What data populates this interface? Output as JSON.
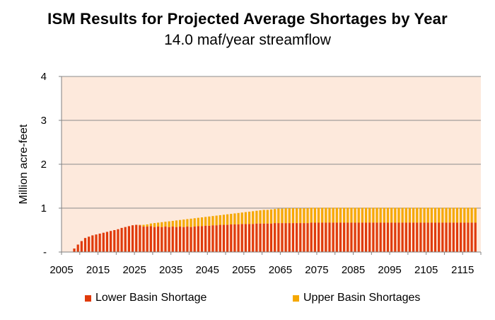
{
  "chart_data": {
    "type": "bar",
    "stacked": true,
    "title": "ISM Results for Projected Average Shortages by Year",
    "subtitle": "14.0 maf/year streamflow",
    "ylabel": "Million acre-feet",
    "xlabel": "",
    "ylim": [
      0,
      4
    ],
    "y_ticks": [
      "-",
      "1",
      "2",
      "3",
      "4"
    ],
    "x_ticks": [
      "2005",
      "2015",
      "2025",
      "2035",
      "2045",
      "2055",
      "2065",
      "2075",
      "2085",
      "2095",
      "2105",
      "2115"
    ],
    "x": [
      2008,
      2009,
      2010,
      2011,
      2012,
      2013,
      2014,
      2015,
      2016,
      2017,
      2018,
      2019,
      2020,
      2021,
      2022,
      2023,
      2024,
      2025,
      2026,
      2027,
      2028,
      2029,
      2030,
      2031,
      2032,
      2033,
      2034,
      2035,
      2036,
      2037,
      2038,
      2039,
      2040,
      2041,
      2042,
      2043,
      2044,
      2045,
      2046,
      2047,
      2048,
      2049,
      2050,
      2051,
      2052,
      2053,
      2054,
      2055,
      2056,
      2057,
      2058,
      2059,
      2060,
      2061,
      2062,
      2063,
      2064,
      2065,
      2066,
      2067,
      2068,
      2069,
      2070,
      2071,
      2072,
      2073,
      2074,
      2075,
      2076,
      2077,
      2078,
      2079,
      2080,
      2081,
      2082,
      2083,
      2084,
      2085,
      2086,
      2087,
      2088,
      2089,
      2090,
      2091,
      2092,
      2093,
      2094,
      2095,
      2096,
      2097,
      2098,
      2099,
      2100,
      2101,
      2102,
      2103,
      2104,
      2105,
      2106,
      2107,
      2108,
      2109,
      2110,
      2111,
      2112,
      2113,
      2114,
      2115,
      2116,
      2117,
      2118
    ],
    "series": [
      {
        "name": "Lower Basin Shortage",
        "color": "#e03a0a",
        "values": [
          0.08,
          0.17,
          0.25,
          0.32,
          0.35,
          0.38,
          0.4,
          0.42,
          0.44,
          0.46,
          0.48,
          0.5,
          0.52,
          0.55,
          0.57,
          0.59,
          0.61,
          0.62,
          0.61,
          0.58,
          0.58,
          0.59,
          0.57,
          0.58,
          0.57,
          0.58,
          0.57,
          0.58,
          0.57,
          0.58,
          0.57,
          0.58,
          0.57,
          0.58,
          0.59,
          0.59,
          0.6,
          0.6,
          0.61,
          0.61,
          0.62,
          0.62,
          0.62,
          0.63,
          0.63,
          0.63,
          0.64,
          0.64,
          0.64,
          0.64,
          0.65,
          0.65,
          0.65,
          0.65,
          0.65,
          0.66,
          0.66,
          0.66,
          0.66,
          0.66,
          0.66,
          0.66,
          0.66,
          0.66,
          0.66,
          0.67,
          0.67,
          0.67,
          0.67,
          0.67,
          0.67,
          0.67,
          0.67,
          0.67,
          0.67,
          0.67,
          0.67,
          0.67,
          0.67,
          0.67,
          0.67,
          0.67,
          0.67,
          0.67,
          0.67,
          0.67,
          0.67,
          0.67,
          0.67,
          0.67,
          0.67,
          0.67,
          0.67,
          0.67,
          0.67,
          0.67,
          0.67,
          0.67,
          0.67,
          0.67,
          0.67,
          0.67,
          0.67,
          0.67,
          0.67,
          0.67,
          0.67,
          0.67,
          0.67,
          0.67,
          0.67
        ]
      },
      {
        "name": "Upper Basin Shortages",
        "color": "#f5a800",
        "values": [
          0,
          0,
          0,
          0,
          0,
          0,
          0,
          0,
          0,
          0,
          0,
          0,
          0,
          0,
          0,
          0,
          0,
          0,
          0.01,
          0.04,
          0.05,
          0.06,
          0.09,
          0.09,
          0.11,
          0.11,
          0.13,
          0.13,
          0.15,
          0.15,
          0.17,
          0.17,
          0.19,
          0.19,
          0.19,
          0.2,
          0.2,
          0.21,
          0.21,
          0.22,
          0.22,
          0.23,
          0.24,
          0.24,
          0.25,
          0.26,
          0.26,
          0.27,
          0.28,
          0.29,
          0.29,
          0.3,
          0.31,
          0.31,
          0.32,
          0.32,
          0.33,
          0.33,
          0.34,
          0.34,
          0.34,
          0.34,
          0.34,
          0.34,
          0.34,
          0.34,
          0.34,
          0.34,
          0.34,
          0.34,
          0.34,
          0.34,
          0.34,
          0.34,
          0.34,
          0.34,
          0.34,
          0.34,
          0.34,
          0.34,
          0.34,
          0.34,
          0.34,
          0.34,
          0.34,
          0.34,
          0.34,
          0.34,
          0.34,
          0.34,
          0.34,
          0.34,
          0.34,
          0.34,
          0.34,
          0.34,
          0.34,
          0.34,
          0.34,
          0.34,
          0.34,
          0.34,
          0.34,
          0.34,
          0.34,
          0.34,
          0.34,
          0.34,
          0.34,
          0.34,
          0.34
        ]
      }
    ],
    "plot_background": "#fde9dc",
    "grid": true,
    "gridline_color": "#8c8c8c",
    "legend_position": "bottom"
  }
}
